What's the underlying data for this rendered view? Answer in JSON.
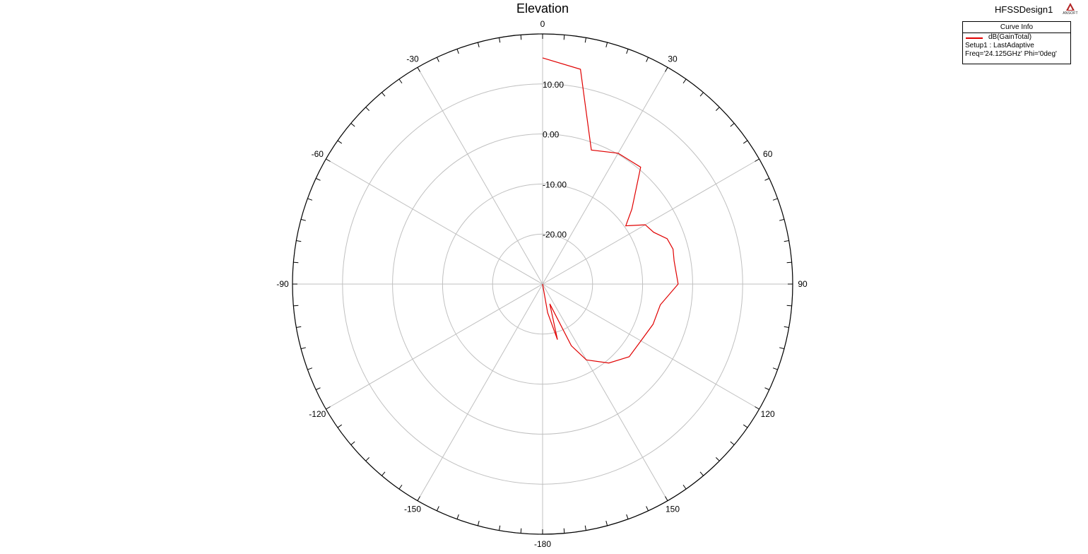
{
  "header": {
    "title": "Elevation",
    "design_name": "HFSSDesign1",
    "logo_text": "ANSOFT"
  },
  "legend": {
    "header": "Curve Info",
    "series_name": "dB(GainTotal)",
    "line1": "Setup1 : LastAdaptive",
    "line2": "Freq='24.125GHz' Phi='0deg'"
  },
  "colors": {
    "trace": "#e00000",
    "grid": "#c0c0c0",
    "axis": "#000000"
  },
  "chart_data": {
    "type": "line",
    "subtype": "polar",
    "title": "Elevation",
    "radial_ticks": [
      10,
      0,
      -10,
      -20
    ],
    "radial_tick_labels": [
      "10.00",
      "0.00",
      "-10.00",
      "-20.00"
    ],
    "r_range": [
      -30,
      20
    ],
    "angle_labels": [
      "0",
      "30",
      "60",
      "90",
      "120",
      "150",
      "-180",
      "-150",
      "-120",
      "-90",
      "-60",
      "-30"
    ],
    "angle_label_values": [
      0,
      30,
      60,
      90,
      120,
      150,
      180,
      210,
      240,
      270,
      300,
      330
    ],
    "angular_grid_step_deg": 30,
    "angular_minor_tick_deg": 5,
    "grid": true,
    "legend_position": "top-right",
    "series": [
      {
        "name": "dB(GainTotal)",
        "theta_deg": [
          0,
          10,
          20,
          30,
          40,
          50,
          55,
          60,
          65,
          70,
          75,
          80,
          90,
          100,
          110,
          120,
          130,
          140,
          150,
          155,
          160,
          165,
          170,
          180
        ],
        "gain_db": [
          15.2,
          13.6,
          -1.5,
          0.2,
          0.5,
          -6.7,
          -9.7,
          -6.3,
          -5.5,
          -3.5,
          -3.0,
          -3.3,
          -2.9,
          -6.1,
          -6.5,
          -7.3,
          -7.4,
          -9.4,
          -12.5,
          -16.4,
          -25.8,
          -18.5,
          -24.2,
          -30
        ]
      }
    ]
  }
}
